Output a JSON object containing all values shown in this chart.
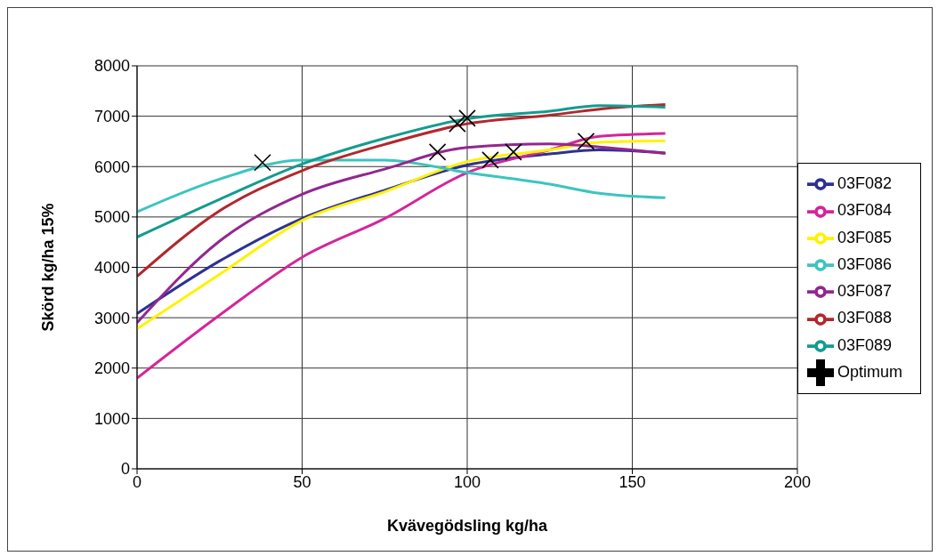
{
  "chart_data": {
    "type": "line",
    "xlabel": "Kvävegödsling kg/ha",
    "ylabel": "Skörd kg/ha 15%",
    "xlim": [
      0,
      200
    ],
    "xticks": [
      0,
      50,
      100,
      150,
      200
    ],
    "ylim": [
      0,
      8000
    ],
    "yticks": [
      0,
      1000,
      2000,
      3000,
      4000,
      5000,
      6000,
      7000,
      8000
    ],
    "grid": true,
    "legend": "right",
    "marker": "none",
    "line_style": "solid",
    "x": [
      0,
      25,
      50,
      75,
      100,
      125,
      140,
      160
    ],
    "series": [
      {
        "name": "03F082",
        "color": "#2e3192",
        "values": [
          3080,
          4125,
          4970,
          5530,
          6030,
          6250,
          6330,
          6270
        ]
      },
      {
        "name": "03F084",
        "color": "#d4259a",
        "values": [
          1800,
          3050,
          4200,
          4970,
          5880,
          6330,
          6600,
          6660
        ]
      },
      {
        "name": "03F085",
        "color": "#fff200",
        "values": [
          2780,
          3860,
          4930,
          5500,
          6100,
          6330,
          6480,
          6510
        ]
      },
      {
        "name": "03F086",
        "color": "#3cc4c0",
        "values": [
          5100,
          5750,
          6130,
          6130,
          5880,
          5650,
          5470,
          5380
        ]
      },
      {
        "name": "03F087",
        "color": "#93278f",
        "values": [
          2900,
          4520,
          5450,
          5950,
          6380,
          6450,
          6390,
          6260
        ]
      },
      {
        "name": "03F088",
        "color": "#b3272d",
        "values": [
          3820,
          5120,
          5920,
          6440,
          6850,
          7020,
          7140,
          7230
        ]
      },
      {
        "name": "03F089",
        "color": "#139c8f",
        "values": [
          4600,
          5350,
          6050,
          6560,
          6950,
          7100,
          7210,
          7180
        ]
      },
      {
        "name": "Optimum",
        "type": "scatter",
        "marker": "cross",
        "color": "#000000",
        "x": [
          38,
          91,
          97,
          100,
          107,
          114,
          136
        ],
        "values": [
          6080,
          6290,
          6850,
          6960,
          6130,
          6290,
          6500
        ]
      }
    ]
  }
}
